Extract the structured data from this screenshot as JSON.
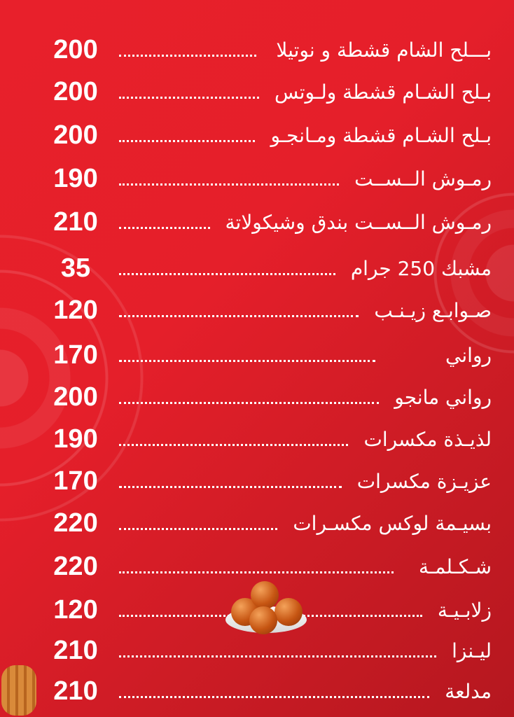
{
  "menu": {
    "items": [
      {
        "name": "بـــلح الشام قشطة و نوتيلا",
        "price": "200"
      },
      {
        "name": "بـلح الشـام قشطة ولـوتس",
        "price": "200"
      },
      {
        "name": "بـلح الشـام قشطة ومـانجـو",
        "price": "200"
      },
      {
        "name": "رمـوش الــســت",
        "price": "190"
      },
      {
        "name": "رمـوش الــســت بندق وشيكولاتة",
        "price": "210"
      },
      {
        "name": "مشبك 250 جرام",
        "price": "35"
      },
      {
        "name": "صـوابـع زيـنـب",
        "price": "120"
      },
      {
        "name": "رواني",
        "price": "170"
      },
      {
        "name": "رواني مانجو",
        "price": "200"
      },
      {
        "name": "لذيـذة مكسرات",
        "price": "190"
      },
      {
        "name": "عزيـزة مكسرات",
        "price": "170"
      },
      {
        "name": "بسيـمة لوكس مكسـرات",
        "price": "220"
      },
      {
        "name": "شـكـلمـة",
        "price": "220"
      },
      {
        "name": "زلابـيـة",
        "price": "120"
      },
      {
        "name": "ليـنزا",
        "price": "210"
      },
      {
        "name": "مدلعة",
        "price": "210"
      }
    ]
  },
  "colors": {
    "background": "#e51f2a",
    "background_dark": "#b5171f",
    "text": "#ffffff"
  },
  "decorations": [
    "mandala-pattern",
    "luqaimat-bowl-image",
    "churro-image"
  ]
}
